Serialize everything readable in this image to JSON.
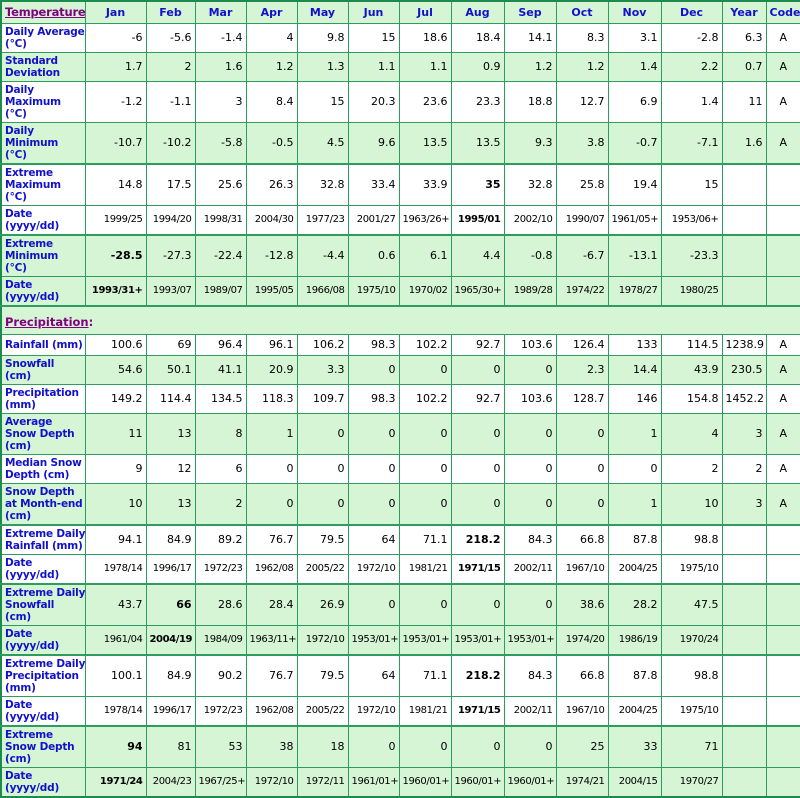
{
  "colors": {
    "border_green": "#2e9c5f",
    "outer_border_green": "#1d8a4f",
    "row_green": "#d5f5d5",
    "row_white": "#ffffff",
    "label_blue": "#1111cc",
    "section_purple": "#800080",
    "data_text": "#000000"
  },
  "table": {
    "section_links": {
      "temperature": "Temperature",
      "precipitation": "Precipitation",
      "colon": ":"
    },
    "columns": [
      "Jan",
      "Feb",
      "Mar",
      "Apr",
      "May",
      "Jun",
      "Jul",
      "Aug",
      "Sep",
      "Oct",
      "Nov",
      "Dec",
      "Year",
      "Code"
    ],
    "rows": [
      {
        "id": "daily-average",
        "bg": "white",
        "label": [
          "Daily Average",
          "(°C)"
        ],
        "values": [
          "-6",
          "-5.6",
          "-1.4",
          "4",
          "9.8",
          "15",
          "18.6",
          "18.4",
          "14.1",
          "8.3",
          "3.1",
          "-2.8",
          "6.3",
          "A"
        ],
        "bold": []
      },
      {
        "id": "standard-deviation",
        "bg": "green",
        "label": [
          "Standard",
          "Deviation"
        ],
        "values": [
          "1.7",
          "2",
          "1.6",
          "1.2",
          "1.3",
          "1.1",
          "1.1",
          "0.9",
          "1.2",
          "1.2",
          "1.4",
          "2.2",
          "0.7",
          "A"
        ],
        "bold": []
      },
      {
        "id": "daily-maximum",
        "bg": "white",
        "label": [
          "Daily",
          "Maximum",
          "(°C)"
        ],
        "values": [
          "-1.2",
          "-1.1",
          "3",
          "8.4",
          "15",
          "20.3",
          "23.6",
          "23.3",
          "18.8",
          "12.7",
          "6.9",
          "1.4",
          "11",
          "A"
        ],
        "bold": []
      },
      {
        "id": "daily-minimum",
        "bg": "green",
        "label": [
          "Daily",
          "Minimum",
          "(°C)"
        ],
        "values": [
          "-10.7",
          "-10.2",
          "-5.8",
          "-0.5",
          "4.5",
          "9.6",
          "13.5",
          "13.5",
          "9.3",
          "3.8",
          "-0.7",
          "-7.1",
          "1.6",
          "A"
        ],
        "bold": []
      },
      {
        "id": "extreme-maximum",
        "bg": "white",
        "thick": true,
        "label": [
          "Extreme",
          "Maximum",
          "(°C)"
        ],
        "values": [
          "14.8",
          "17.5",
          "25.6",
          "26.3",
          "32.8",
          "33.4",
          "33.9",
          "35",
          "32.8",
          "25.8",
          "19.4",
          "15",
          "",
          ""
        ],
        "bold": [
          7
        ]
      },
      {
        "id": "date-extreme-maximum",
        "bg": "white",
        "date": true,
        "label": [
          "Date",
          "(yyyy/dd)"
        ],
        "values": [
          "1999/25",
          "1994/20",
          "1998/31",
          "2004/30",
          "1977/23",
          "2001/27",
          "1963/26+",
          "1995/01",
          "2002/10",
          "1990/07",
          "1961/05+",
          "1953/06+",
          "",
          ""
        ],
        "bold": [
          7
        ]
      },
      {
        "id": "extreme-minimum",
        "bg": "green",
        "thick": true,
        "label": [
          "Extreme",
          "Minimum",
          "(°C)"
        ],
        "values": [
          "-28.5",
          "-27.3",
          "-22.4",
          "-12.8",
          "-4.4",
          "0.6",
          "6.1",
          "4.4",
          "-0.8",
          "-6.7",
          "-13.1",
          "-23.3",
          "",
          ""
        ],
        "bold": [
          0
        ]
      },
      {
        "id": "date-extreme-minimum",
        "bg": "green",
        "date": true,
        "label": [
          "Date",
          "(yyyy/dd)"
        ],
        "values": [
          "1993/31+",
          "1993/07",
          "1989/07",
          "1995/05",
          "1966/08",
          "1975/10",
          "1970/02",
          "1965/30+",
          "1989/28",
          "1974/22",
          "1978/27",
          "1980/25",
          "",
          ""
        ],
        "bold": [
          0
        ]
      },
      {
        "type": "section",
        "id": "precipitation",
        "bg": "green",
        "thick": true,
        "single": true
      },
      {
        "id": "rainfall",
        "bg": "white",
        "single": true,
        "label": [
          "Rainfall (mm)"
        ],
        "values": [
          "100.6",
          "69",
          "96.4",
          "96.1",
          "106.2",
          "98.3",
          "102.2",
          "92.7",
          "103.6",
          "126.4",
          "133",
          "114.5",
          "1238.9",
          "A"
        ],
        "bold": []
      },
      {
        "id": "snowfall",
        "bg": "green",
        "label": [
          "Snowfall",
          "(cm)"
        ],
        "values": [
          "54.6",
          "50.1",
          "41.1",
          "20.9",
          "3.3",
          "0",
          "0",
          "0",
          "0",
          "2.3",
          "14.4",
          "43.9",
          "230.5",
          "A"
        ],
        "bold": []
      },
      {
        "id": "precipitation-mm",
        "bg": "white",
        "label": [
          "Precipitation",
          "(mm)"
        ],
        "values": [
          "149.2",
          "114.4",
          "134.5",
          "118.3",
          "109.7",
          "98.3",
          "102.2",
          "92.7",
          "103.6",
          "128.7",
          "146",
          "154.8",
          "1452.2",
          "A"
        ],
        "bold": []
      },
      {
        "id": "average-snow-depth",
        "bg": "green",
        "label": [
          "Average",
          "Snow Depth",
          "(cm)"
        ],
        "values": [
          "11",
          "13",
          "8",
          "1",
          "0",
          "0",
          "0",
          "0",
          "0",
          "0",
          "1",
          "4",
          "3",
          "A"
        ],
        "bold": []
      },
      {
        "id": "median-snow-depth",
        "bg": "white",
        "label": [
          "Median Snow",
          "Depth (cm)"
        ],
        "values": [
          "9",
          "12",
          "6",
          "0",
          "0",
          "0",
          "0",
          "0",
          "0",
          "0",
          "0",
          "2",
          "2",
          "A"
        ],
        "bold": []
      },
      {
        "id": "snow-depth-month-end",
        "bg": "green",
        "label": [
          "Snow Depth",
          "at Month-end",
          "(cm)"
        ],
        "values": [
          "10",
          "13",
          "2",
          "0",
          "0",
          "0",
          "0",
          "0",
          "0",
          "0",
          "1",
          "10",
          "3",
          "A"
        ],
        "bold": []
      },
      {
        "id": "extreme-daily-rainfall",
        "bg": "white",
        "thick": true,
        "label": [
          "Extreme Daily",
          "Rainfall (mm)"
        ],
        "values": [
          "94.1",
          "84.9",
          "89.2",
          "76.7",
          "79.5",
          "64",
          "71.1",
          "218.2",
          "84.3",
          "66.8",
          "87.8",
          "98.8",
          "",
          ""
        ],
        "bold": [
          7
        ]
      },
      {
        "id": "date-extreme-daily-rainfall",
        "bg": "white",
        "date": true,
        "label": [
          "Date",
          "(yyyy/dd)"
        ],
        "values": [
          "1978/14",
          "1996/17",
          "1972/23",
          "1962/08",
          "2005/22",
          "1972/10",
          "1981/21",
          "1971/15",
          "2002/11",
          "1967/10",
          "2004/25",
          "1975/10",
          "",
          ""
        ],
        "bold": [
          7
        ]
      },
      {
        "id": "extreme-daily-snowfall",
        "bg": "green",
        "thick": true,
        "label": [
          "Extreme Daily",
          "Snowfall",
          "(cm)"
        ],
        "values": [
          "43.7",
          "66",
          "28.6",
          "28.4",
          "26.9",
          "0",
          "0",
          "0",
          "0",
          "38.6",
          "28.2",
          "47.5",
          "",
          ""
        ],
        "bold": [
          1
        ]
      },
      {
        "id": "date-extreme-daily-snowfall",
        "bg": "green",
        "date": true,
        "label": [
          "Date",
          "(yyyy/dd)"
        ],
        "values": [
          "1961/04",
          "2004/19",
          "1984/09",
          "1963/11+",
          "1972/10",
          "1953/01+",
          "1953/01+",
          "1953/01+",
          "1953/01+",
          "1974/20",
          "1986/19",
          "1970/24",
          "",
          ""
        ],
        "bold": [
          1
        ]
      },
      {
        "id": "extreme-daily-precipitation",
        "bg": "white",
        "thick": true,
        "label": [
          "Extreme Daily",
          "Precipitation",
          "(mm)"
        ],
        "values": [
          "100.1",
          "84.9",
          "90.2",
          "76.7",
          "79.5",
          "64",
          "71.1",
          "218.2",
          "84.3",
          "66.8",
          "87.8",
          "98.8",
          "",
          ""
        ],
        "bold": [
          7
        ]
      },
      {
        "id": "date-extreme-daily-precipitation",
        "bg": "white",
        "date": true,
        "label": [
          "Date",
          "(yyyy/dd)"
        ],
        "values": [
          "1978/14",
          "1996/17",
          "1972/23",
          "1962/08",
          "2005/22",
          "1972/10",
          "1981/21",
          "1971/15",
          "2002/11",
          "1967/10",
          "2004/25",
          "1975/10",
          "",
          ""
        ],
        "bold": [
          7
        ]
      },
      {
        "id": "extreme-snow-depth",
        "bg": "green",
        "thick": true,
        "label": [
          "Extreme",
          "Snow Depth",
          "(cm)"
        ],
        "values": [
          "94",
          "81",
          "53",
          "38",
          "18",
          "0",
          "0",
          "0",
          "0",
          "25",
          "33",
          "71",
          "",
          ""
        ],
        "bold": [
          0
        ]
      },
      {
        "id": "date-extreme-snow-depth",
        "bg": "green",
        "date": true,
        "label": [
          "Date",
          "(yyyy/dd)"
        ],
        "values": [
          "1971/24",
          "2004/23",
          "1967/25+",
          "1972/10",
          "1972/11",
          "1961/01+",
          "1960/01+",
          "1960/01+",
          "1960/01+",
          "1974/21",
          "2004/15",
          "1970/27",
          "",
          ""
        ],
        "bold": [
          0
        ]
      }
    ]
  }
}
